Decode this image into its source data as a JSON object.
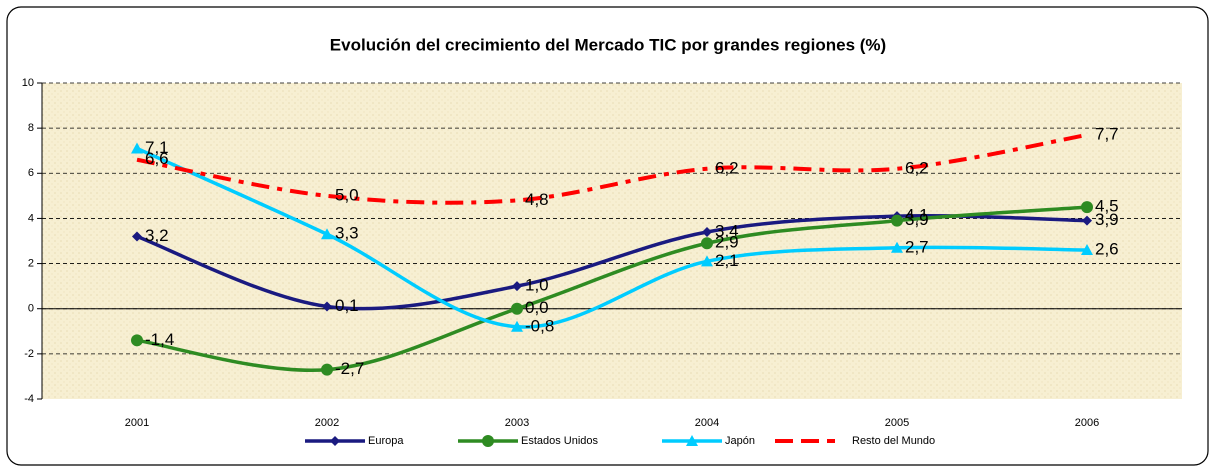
{
  "chart_data": {
    "type": "line",
    "title": "Evolución del crecimiento del Mercado TIC por grandes regiones (%)",
    "categories": [
      "2001",
      "2002",
      "2003",
      "2004",
      "2005",
      "2006"
    ],
    "ylim": [
      -4,
      10
    ],
    "yticks": [
      -4,
      -2,
      0,
      2,
      4,
      6,
      8,
      10
    ],
    "grid": true,
    "legend": "bottom",
    "series": [
      {
        "name": "Europa",
        "color": "#1a1a80",
        "marker": "diamond",
        "values": [
          3.2,
          0.1,
          1.0,
          3.4,
          4.1,
          3.9
        ],
        "value_labels": [
          "3,2",
          "0,1",
          "1,0",
          "3,4",
          "4,1",
          "3,9"
        ]
      },
      {
        "name": "Estados Unidos",
        "color": "#2e8b22",
        "marker": "circle",
        "values": [
          -1.4,
          -2.7,
          0.0,
          2.9,
          3.9,
          4.5
        ],
        "value_labels": [
          "-1,4",
          "-2,7",
          "0,0",
          "2,9",
          "3,9",
          "4,5"
        ]
      },
      {
        "name": "Japón",
        "color": "#00ccff",
        "marker": "triangle",
        "values": [
          7.1,
          3.3,
          -0.8,
          2.1,
          2.7,
          2.6
        ],
        "value_labels": [
          "7,1",
          "3,3",
          "-0,8",
          "2,1",
          "2,7",
          "2,6"
        ]
      },
      {
        "name": "Resto del Mundo",
        "color": "#ff0000",
        "marker": "none",
        "dashed": true,
        "values": [
          6.6,
          5.0,
          4.8,
          6.2,
          6.2,
          7.7
        ],
        "value_labels": [
          "6,6",
          "5,0",
          "4,8",
          "6,2",
          "6,2",
          "7,7"
        ]
      }
    ]
  }
}
